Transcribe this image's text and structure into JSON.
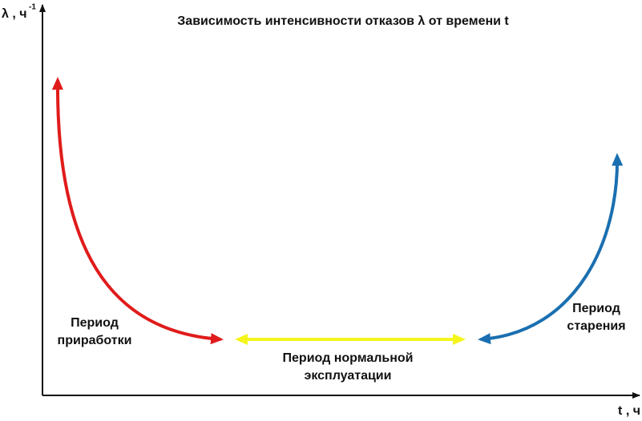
{
  "title": "Зависимость интенсивности отказов λ от времени t",
  "y_axis": {
    "label": "λ , ч",
    "superscript": "-1"
  },
  "x_axis": {
    "label": "t , ч"
  },
  "periods": [
    {
      "lines": [
        "Период",
        "приработки"
      ]
    },
    {
      "lines": [
        "Период нормальной",
        "эксплуатации"
      ]
    },
    {
      "lines": [
        "Период",
        "старения"
      ]
    }
  ]
}
